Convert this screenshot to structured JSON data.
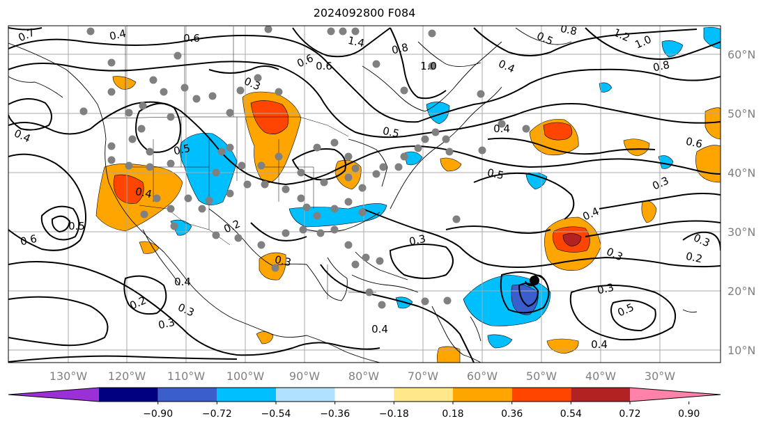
{
  "title": "2024092800 F084",
  "lon_labels": [
    "130°W",
    "120°W",
    "110°W",
    "100°W",
    "90°W",
    "80°W",
    "70°W",
    "60°W",
    "50°W",
    "40°W",
    "30°W"
  ],
  "lat_labels": [
    "60°N",
    "50°N",
    "40°N",
    "30°N",
    "20°N",
    "10°N"
  ],
  "colorbar": {
    "colors": [
      "#9b30d9",
      "#000080",
      "#3a5fcd",
      "#00bfff",
      "#b0e2ff",
      "#ffffff",
      "#ffe78a",
      "#ffa500",
      "#ff4500",
      "#b22222",
      "#ff82ab"
    ],
    "tick_labels": [
      "−0.90",
      "−0.72",
      "−0.54",
      "−0.36",
      "−0.18",
      "0.18",
      "0.36",
      "0.54",
      "0.72",
      "0.90"
    ]
  },
  "contour_labels": [
    "0.7",
    "0.4",
    "0.6",
    "0.8",
    "1.2",
    "1.0",
    "0.8",
    "0.6",
    "0.5",
    "0.3",
    "0.2",
    "0.3",
    "0.4",
    "0.5",
    "0.3",
    "0.4",
    "0.3",
    "0.4",
    "0.2",
    "0.3",
    "0.5",
    "0.5",
    "0.4",
    "0.6",
    "0.4",
    "0.3",
    "0.6",
    "0.5",
    "0.4",
    "0.3",
    "0.2",
    "0.3",
    "0.4",
    "0.3",
    "0.5",
    "0.6",
    "0.8",
    "1.0",
    "1.4",
    "0.4"
  ],
  "colors": {
    "contour": "#000000",
    "grid": "#a9a9a9",
    "gray_dot": "#808080",
    "axis_text": "#808080"
  }
}
